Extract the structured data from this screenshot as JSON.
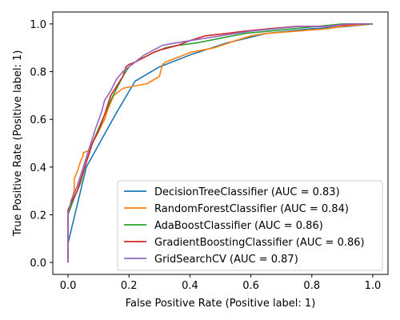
{
  "chart_data": {
    "type": "line",
    "title": "",
    "xlabel": "False Positive Rate (Positive label: 1)",
    "ylabel": "True Positive Rate (Positive label: 1)",
    "xlim": [
      -0.05,
      1.05
    ],
    "ylim": [
      -0.05,
      1.05
    ],
    "xticks": [
      0.0,
      0.2,
      0.4,
      0.6,
      0.8,
      1.0
    ],
    "yticks": [
      0.0,
      0.2,
      0.4,
      0.6,
      0.8,
      1.0
    ],
    "tick_labels": [
      "0.0",
      "0.2",
      "0.4",
      "0.6",
      "0.8",
      "1.0"
    ],
    "grid": false,
    "legend_position": "lower-right",
    "series": [
      {
        "name": "DecisionTreeClassifier (AUC = 0.83)",
        "color": "#1f77b4",
        "x": [
          0.0,
          0.0,
          0.06,
          0.16,
          0.22,
          0.3,
          0.4,
          0.52,
          0.65,
          0.8,
          0.92,
          1.0
        ],
        "y": [
          0.0,
          0.08,
          0.4,
          0.63,
          0.76,
          0.82,
          0.87,
          0.92,
          0.96,
          0.98,
          0.99,
          1.0
        ]
      },
      {
        "name": "RandomForestClassifier (AUC = 0.84)",
        "color": "#ff7f0e",
        "x": [
          0.0,
          0.0,
          0.01,
          0.02,
          0.02,
          0.03,
          0.04,
          0.05,
          0.05,
          0.07,
          0.08,
          0.1,
          0.12,
          0.13,
          0.15,
          0.18,
          0.22,
          0.26,
          0.3,
          0.31,
          0.32,
          0.36,
          0.4,
          0.44,
          0.48,
          0.55,
          0.6,
          0.65,
          0.75,
          0.85,
          0.9,
          1.0
        ],
        "y": [
          0.0,
          0.2,
          0.25,
          0.3,
          0.35,
          0.38,
          0.42,
          0.45,
          0.46,
          0.47,
          0.5,
          0.55,
          0.6,
          0.64,
          0.7,
          0.73,
          0.74,
          0.75,
          0.78,
          0.83,
          0.84,
          0.86,
          0.88,
          0.89,
          0.9,
          0.93,
          0.95,
          0.96,
          0.97,
          0.98,
          0.99,
          1.0
        ]
      },
      {
        "name": "AdaBoostClassifier (AUC = 0.86)",
        "color": "#2ca02c",
        "x": [
          0.0,
          0.0,
          0.02,
          0.04,
          0.06,
          0.08,
          0.1,
          0.12,
          0.14,
          0.16,
          0.18,
          0.2,
          0.22,
          0.28,
          0.32,
          0.36,
          0.42,
          0.5,
          0.58,
          0.66,
          0.74,
          0.82,
          0.9,
          1.0
        ],
        "y": [
          0.0,
          0.2,
          0.27,
          0.33,
          0.42,
          0.5,
          0.56,
          0.62,
          0.68,
          0.73,
          0.78,
          0.82,
          0.84,
          0.88,
          0.9,
          0.91,
          0.92,
          0.94,
          0.96,
          0.97,
          0.98,
          0.99,
          1.0,
          1.0
        ]
      },
      {
        "name": "GradientBoostingClassifier (AUC = 0.86)",
        "color": "#d62728",
        "x": [
          0.0,
          0.0,
          0.01,
          0.03,
          0.05,
          0.07,
          0.08,
          0.1,
          0.12,
          0.14,
          0.16,
          0.18,
          0.19,
          0.2,
          0.22,
          0.25,
          0.28,
          0.3,
          0.33,
          0.36,
          0.4,
          0.45,
          0.52,
          0.58,
          0.66,
          0.75,
          0.85,
          0.95,
          1.0
        ],
        "y": [
          0.0,
          0.22,
          0.25,
          0.3,
          0.38,
          0.46,
          0.5,
          0.55,
          0.62,
          0.7,
          0.74,
          0.78,
          0.82,
          0.83,
          0.84,
          0.86,
          0.88,
          0.89,
          0.9,
          0.91,
          0.93,
          0.95,
          0.96,
          0.97,
          0.98,
          0.99,
          0.99,
          1.0,
          1.0
        ]
      },
      {
        "name": "GridSearchCV (AUC = 0.87)",
        "color": "#9467bd",
        "x": [
          0.0,
          0.0,
          0.01,
          0.03,
          0.05,
          0.07,
          0.09,
          0.11,
          0.12,
          0.14,
          0.16,
          0.18,
          0.2,
          0.22,
          0.25,
          0.28,
          0.31,
          0.35,
          0.4,
          0.45,
          0.5,
          0.55,
          0.6,
          0.68,
          0.76,
          0.85,
          0.92,
          1.0
        ],
        "y": [
          0.0,
          0.2,
          0.26,
          0.32,
          0.4,
          0.48,
          0.56,
          0.63,
          0.68,
          0.72,
          0.77,
          0.8,
          0.82,
          0.84,
          0.87,
          0.89,
          0.91,
          0.92,
          0.93,
          0.94,
          0.95,
          0.96,
          0.97,
          0.98,
          0.99,
          0.99,
          1.0,
          1.0
        ]
      }
    ]
  }
}
